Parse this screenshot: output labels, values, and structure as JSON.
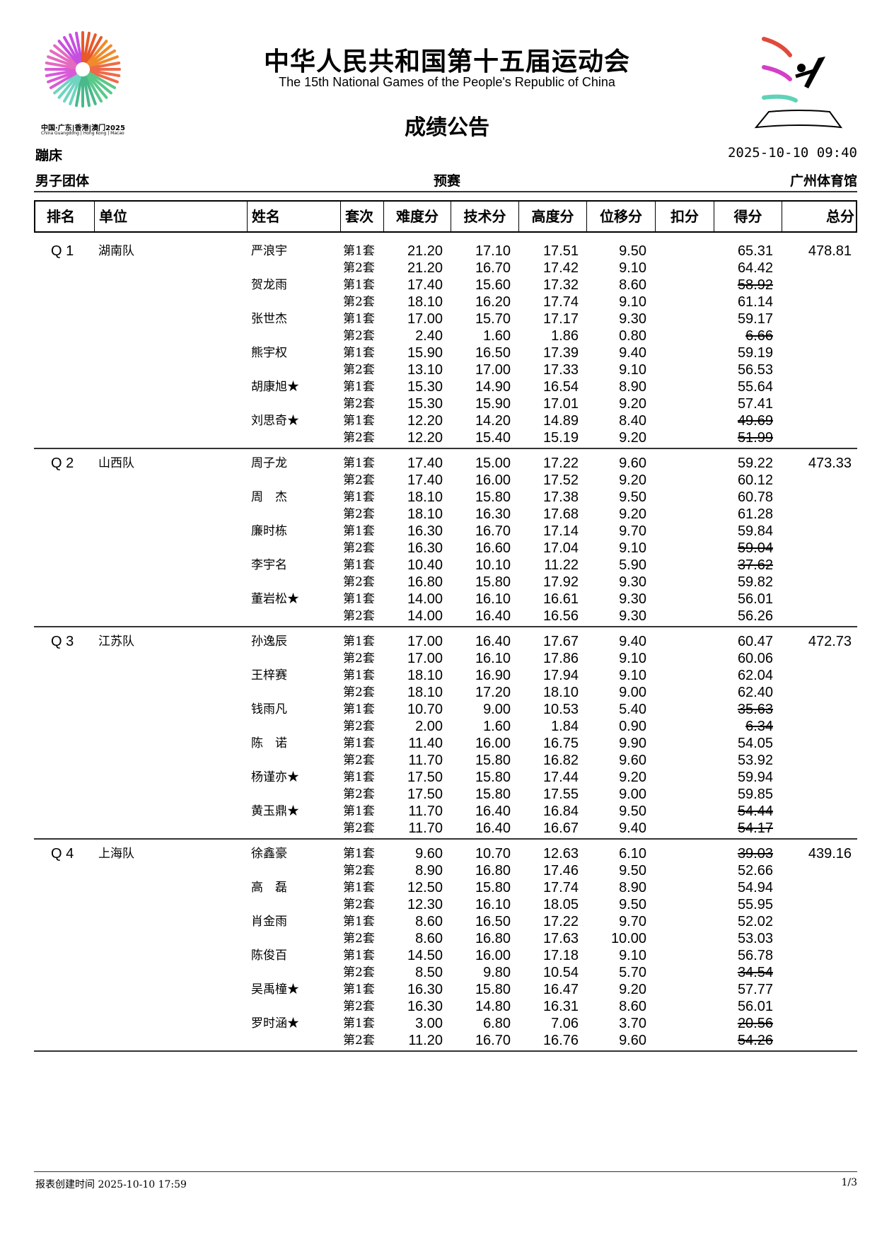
{
  "header": {
    "title_cn": "中华人民共和国第十五届运动会",
    "title_en": "The 15th National Games of the People's Republic of China",
    "doc_title": "成绩公告",
    "logo_caption_cn": "中国·广东|香港|澳门2025",
    "logo_caption_en": "China Guangdong | Hong Kong | Macao",
    "sport": "蹦床",
    "datetime": "2025-10-10 09:40",
    "event": "男子团体",
    "phase": "预赛",
    "venue": "广州体育馆"
  },
  "columns": [
    "排名",
    "单位",
    "姓名",
    "套次",
    "难度分",
    "技术分",
    "高度分",
    "位移分",
    "扣分",
    "得分",
    "总分"
  ],
  "teams": [
    {
      "rank": "Q 1",
      "unit": "湖南队",
      "total": "478.81",
      "athletes": [
        {
          "name": "严浪宇",
          "routines": [
            [
              "第1套",
              "21.20",
              "17.10",
              "17.51",
              "9.50",
              "",
              "65.31",
              false
            ],
            [
              "第2套",
              "21.20",
              "16.70",
              "17.42",
              "9.10",
              "",
              "64.42",
              false
            ]
          ]
        },
        {
          "name": "贺龙雨",
          "routines": [
            [
              "第1套",
              "17.40",
              "15.60",
              "17.32",
              "8.60",
              "",
              "58.92",
              true
            ],
            [
              "第2套",
              "18.10",
              "16.20",
              "17.74",
              "9.10",
              "",
              "61.14",
              false
            ]
          ]
        },
        {
          "name": "张世杰",
          "routines": [
            [
              "第1套",
              "17.00",
              "15.70",
              "17.17",
              "9.30",
              "",
              "59.17",
              false
            ],
            [
              "第2套",
              "2.40",
              "1.60",
              "1.86",
              "0.80",
              "",
              "6.66",
              true
            ]
          ]
        },
        {
          "name": "熊宇权",
          "routines": [
            [
              "第1套",
              "15.90",
              "16.50",
              "17.39",
              "9.40",
              "",
              "59.19",
              false
            ],
            [
              "第2套",
              "13.10",
              "17.00",
              "17.33",
              "9.10",
              "",
              "56.53",
              false
            ]
          ]
        },
        {
          "name": "胡康旭★",
          "routines": [
            [
              "第1套",
              "15.30",
              "14.90",
              "16.54",
              "8.90",
              "",
              "55.64",
              false
            ],
            [
              "第2套",
              "15.30",
              "15.90",
              "17.01",
              "9.20",
              "",
              "57.41",
              false
            ]
          ]
        },
        {
          "name": "刘思奇★",
          "routines": [
            [
              "第1套",
              "12.20",
              "14.20",
              "14.89",
              "8.40",
              "",
              "49.69",
              true
            ],
            [
              "第2套",
              "12.20",
              "15.40",
              "15.19",
              "9.20",
              "",
              "51.99",
              true
            ]
          ]
        }
      ]
    },
    {
      "rank": "Q 2",
      "unit": "山西队",
      "total": "473.33",
      "athletes": [
        {
          "name": "周子龙",
          "routines": [
            [
              "第1套",
              "17.40",
              "15.00",
              "17.22",
              "9.60",
              "",
              "59.22",
              false
            ],
            [
              "第2套",
              "17.40",
              "16.00",
              "17.52",
              "9.20",
              "",
              "60.12",
              false
            ]
          ]
        },
        {
          "name": "周　杰",
          "routines": [
            [
              "第1套",
              "18.10",
              "15.80",
              "17.38",
              "9.50",
              "",
              "60.78",
              false
            ],
            [
              "第2套",
              "18.10",
              "16.30",
              "17.68",
              "9.20",
              "",
              "61.28",
              false
            ]
          ]
        },
        {
          "name": "廉时栋",
          "routines": [
            [
              "第1套",
              "16.30",
              "16.70",
              "17.14",
              "9.70",
              "",
              "59.84",
              false
            ],
            [
              "第2套",
              "16.30",
              "16.60",
              "17.04",
              "9.10",
              "",
              "59.04",
              true
            ]
          ]
        },
        {
          "name": "李宇名",
          "routines": [
            [
              "第1套",
              "10.40",
              "10.10",
              "11.22",
              "5.90",
              "",
              "37.62",
              true
            ],
            [
              "第2套",
              "16.80",
              "15.80",
              "17.92",
              "9.30",
              "",
              "59.82",
              false
            ]
          ]
        },
        {
          "name": "董岩松★",
          "routines": [
            [
              "第1套",
              "14.00",
              "16.10",
              "16.61",
              "9.30",
              "",
              "56.01",
              false
            ],
            [
              "第2套",
              "14.00",
              "16.40",
              "16.56",
              "9.30",
              "",
              "56.26",
              false
            ]
          ]
        }
      ]
    },
    {
      "rank": "Q 3",
      "unit": "江苏队",
      "total": "472.73",
      "athletes": [
        {
          "name": "孙逸辰",
          "routines": [
            [
              "第1套",
              "17.00",
              "16.40",
              "17.67",
              "9.40",
              "",
              "60.47",
              false
            ],
            [
              "第2套",
              "17.00",
              "16.10",
              "17.86",
              "9.10",
              "",
              "60.06",
              false
            ]
          ]
        },
        {
          "name": "王梓赛",
          "routines": [
            [
              "第1套",
              "18.10",
              "16.90",
              "17.94",
              "9.10",
              "",
              "62.04",
              false
            ],
            [
              "第2套",
              "18.10",
              "17.20",
              "18.10",
              "9.00",
              "",
              "62.40",
              false
            ]
          ]
        },
        {
          "name": "钱雨凡",
          "routines": [
            [
              "第1套",
              "10.70",
              "9.00",
              "10.53",
              "5.40",
              "",
              "35.63",
              true
            ],
            [
              "第2套",
              "2.00",
              "1.60",
              "1.84",
              "0.90",
              "",
              "6.34",
              true
            ]
          ]
        },
        {
          "name": "陈　诺",
          "routines": [
            [
              "第1套",
              "11.40",
              "16.00",
              "16.75",
              "9.90",
              "",
              "54.05",
              false
            ],
            [
              "第2套",
              "11.70",
              "15.80",
              "16.82",
              "9.60",
              "",
              "53.92",
              false
            ]
          ]
        },
        {
          "name": "杨谨亦★",
          "routines": [
            [
              "第1套",
              "17.50",
              "15.80",
              "17.44",
              "9.20",
              "",
              "59.94",
              false
            ],
            [
              "第2套",
              "17.50",
              "15.80",
              "17.55",
              "9.00",
              "",
              "59.85",
              false
            ]
          ]
        },
        {
          "name": "黄玉鼎★",
          "routines": [
            [
              "第1套",
              "11.70",
              "16.40",
              "16.84",
              "9.50",
              "",
              "54.44",
              true
            ],
            [
              "第2套",
              "11.70",
              "16.40",
              "16.67",
              "9.40",
              "",
              "54.17",
              true
            ]
          ]
        }
      ]
    },
    {
      "rank": "Q 4",
      "unit": "上海队",
      "total": "439.16",
      "athletes": [
        {
          "name": "徐鑫豪",
          "routines": [
            [
              "第1套",
              "9.60",
              "10.70",
              "12.63",
              "6.10",
              "",
              "39.03",
              true
            ],
            [
              "第2套",
              "8.90",
              "16.80",
              "17.46",
              "9.50",
              "",
              "52.66",
              false
            ]
          ]
        },
        {
          "name": "高　磊",
          "routines": [
            [
              "第1套",
              "12.50",
              "15.80",
              "17.74",
              "8.90",
              "",
              "54.94",
              false
            ],
            [
              "第2套",
              "12.30",
              "16.10",
              "18.05",
              "9.50",
              "",
              "55.95",
              false
            ]
          ]
        },
        {
          "name": "肖金雨",
          "routines": [
            [
              "第1套",
              "8.60",
              "16.50",
              "17.22",
              "9.70",
              "",
              "52.02",
              false
            ],
            [
              "第2套",
              "8.60",
              "16.80",
              "17.63",
              "10.00",
              "",
              "53.03",
              false
            ]
          ]
        },
        {
          "name": "陈俊百",
          "routines": [
            [
              "第1套",
              "14.50",
              "16.00",
              "17.18",
              "9.10",
              "",
              "56.78",
              false
            ],
            [
              "第2套",
              "8.50",
              "9.80",
              "10.54",
              "5.70",
              "",
              "34.54",
              true
            ]
          ]
        },
        {
          "name": "吴禹橦★",
          "routines": [
            [
              "第1套",
              "16.30",
              "15.80",
              "16.47",
              "9.20",
              "",
              "57.77",
              false
            ],
            [
              "第2套",
              "16.30",
              "14.80",
              "16.31",
              "8.60",
              "",
              "56.01",
              false
            ]
          ]
        },
        {
          "name": "罗时涵★",
          "routines": [
            [
              "第1套",
              "3.00",
              "6.80",
              "7.06",
              "3.70",
              "",
              "20.56",
              true
            ],
            [
              "第2套",
              "11.20",
              "16.70",
              "16.76",
              "9.60",
              "",
              "54.26",
              true
            ]
          ]
        }
      ]
    }
  ],
  "footer": {
    "created": "报表创建时间 2025-10-10 17:59",
    "page": "1/3"
  }
}
